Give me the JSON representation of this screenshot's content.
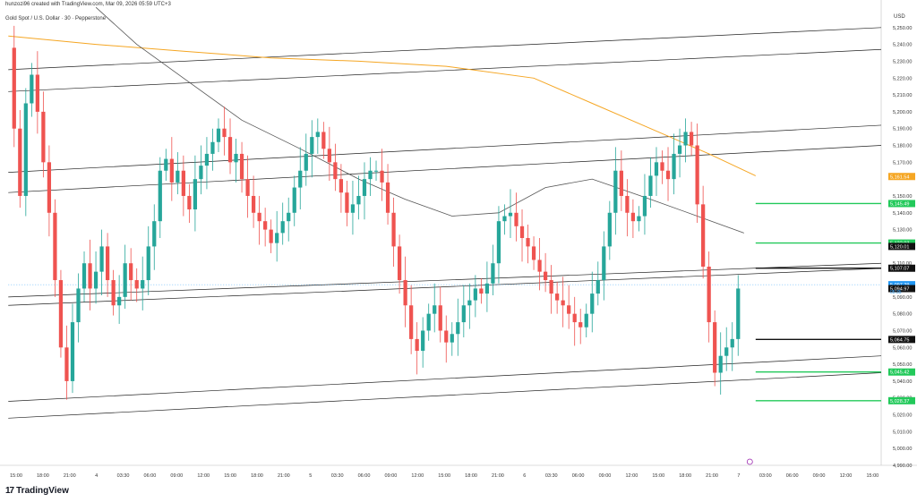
{
  "header": {
    "author_line": "hunzozi96 created with TradingView.com, Mar 09, 2026 05:59 UTC+3",
    "symbol": "Gold Spot / U.S. Dollar · 30 · Pepperstone"
  },
  "brand": {
    "name": "TradingView",
    "logo_icon": "tradingview-logo-icon"
  },
  "colors": {
    "up": "#26a69a",
    "down": "#ef5350",
    "ma_orange": "#f5a623",
    "ma_gray": "#555555",
    "level_green": "#22c95a",
    "level_black": "#111111",
    "current": "#2196f3"
  },
  "chart_data": {
    "type": "candlestick",
    "currency": "USD",
    "ylim": [
      4990,
      5260
    ],
    "y_ticks": [
      "5,250.00",
      "5,240.00",
      "5,230.00",
      "5,220.00",
      "5,210.00",
      "5,200.00",
      "5,190.00",
      "5,180.00",
      "5,170.00",
      "5,150.00",
      "5,140.00",
      "5,130.00",
      "5,110.00",
      "5,090.00",
      "5,080.00",
      "5,070.00",
      "5,060.00",
      "5,050.00",
      "5,040.00",
      "5,030.00",
      "5,020.00",
      "5,010.00",
      "5,000.00",
      "4,990.00"
    ],
    "x_ticks": [
      "15:00",
      "18:00",
      "21:00",
      "4",
      "03:30",
      "06:00",
      "09:00",
      "12:00",
      "15:00",
      "18:00",
      "21:00",
      "5",
      "03:30",
      "06:00",
      "09:00",
      "12:00",
      "15:00",
      "18:00",
      "21:00",
      "6",
      "03:30",
      "06:00",
      "09:00",
      "12:00",
      "15:00",
      "18:00",
      "21:00",
      "7",
      "03:00",
      "06:00",
      "09:00",
      "12:00",
      "15:00"
    ],
    "candle_close_series": [
      5238,
      5190,
      5150,
      5205,
      5222,
      5200,
      5170,
      5140,
      5100,
      5060,
      5040,
      5075,
      5095,
      5110,
      5095,
      5105,
      5120,
      5100,
      5085,
      5090,
      5110,
      5100,
      5095,
      5100,
      5120,
      5135,
      5165,
      5172,
      5158,
      5165,
      5150,
      5142,
      5160,
      5168,
      5175,
      5182,
      5190,
      5185,
      5170,
      5175,
      5160,
      5150,
      5140,
      5135,
      5130,
      5122,
      5128,
      5135,
      5140,
      5155,
      5165,
      5175,
      5185,
      5188,
      5178,
      5170,
      5160,
      5152,
      5140,
      5145,
      5150,
      5160,
      5165,
      5165,
      5158,
      5140,
      5120,
      5100,
      5085,
      5065,
      5058,
      5070,
      5080,
      5085,
      5070,
      5063,
      5068,
      5075,
      5085,
      5088,
      5095,
      5092,
      5098,
      5110,
      5135,
      5138,
      5140,
      5132,
      5125,
      5120,
      5112,
      5105,
      5100,
      5092,
      5088,
      5085,
      5080,
      5075,
      5072,
      5080,
      5092,
      5100,
      5120,
      5140,
      5165,
      5150,
      5140,
      5135,
      5138,
      5150,
      5162,
      5170,
      5165,
      5160,
      5175,
      5180,
      5188,
      5180,
      5145,
      5108,
      5075,
      5045,
      5055,
      5060,
      5065,
      5095
    ],
    "current_price": 5097.29,
    "current_sub": "05:35",
    "price_labels": [
      {
        "text": "5,161.54",
        "price": 5161.54,
        "color": "#f5a623"
      },
      {
        "text": "5,145.49",
        "price": 5145.49,
        "color": "#22c95a"
      },
      {
        "text": "5,122.03",
        "price": 5122.03,
        "color": "#22c95a"
      },
      {
        "text": "5,120.01",
        "price": 5120.01,
        "color": "#111111"
      },
      {
        "text": "5,107.07",
        "price": 5107.07,
        "color": "#111111"
      },
      {
        "text": "5,097.29",
        "price": 5097.29,
        "color": "#2196f3"
      },
      {
        "text": "5,094.97",
        "price": 5094.97,
        "color": "#111111"
      },
      {
        "text": "5,064.75",
        "price": 5064.75,
        "color": "#111111"
      },
      {
        "text": "5,045.42",
        "price": 5045.42,
        "color": "#22c95a"
      },
      {
        "text": "5,028.37",
        "price": 5028.37,
        "color": "#22c95a"
      }
    ],
    "horizontal_levels": [
      5145.49,
      5122.03,
      5107.07,
      5064.75,
      5045.42,
      5028.37
    ],
    "trend_channels": [
      {
        "p1": {
          "bar": 0,
          "price": 5225
        },
        "p2": {
          "bar": 149,
          "price": 5250
        }
      },
      {
        "p1": {
          "bar": 0,
          "price": 5212
        },
        "p2": {
          "bar": 149,
          "price": 5237
        }
      },
      {
        "p1": {
          "bar": 0,
          "price": 5164
        },
        "p2": {
          "bar": 149,
          "price": 5192
        }
      },
      {
        "p1": {
          "bar": 0,
          "price": 5152
        },
        "p2": {
          "bar": 149,
          "price": 5180
        }
      },
      {
        "p1": {
          "bar": 0,
          "price": 5090
        },
        "p2": {
          "bar": 149,
          "price": 5110
        }
      },
      {
        "p1": {
          "bar": 0,
          "price": 5085
        },
        "p2": {
          "bar": 149,
          "price": 5107
        }
      },
      {
        "p1": {
          "bar": 0,
          "price": 5028
        },
        "p2": {
          "bar": 149,
          "price": 5055
        }
      },
      {
        "p1": {
          "bar": 0,
          "price": 5018
        },
        "p2": {
          "bar": 149,
          "price": 5045
        }
      }
    ],
    "ma_orange": [
      [
        0,
        5245
      ],
      [
        15,
        5240
      ],
      [
        30,
        5236
      ],
      [
        45,
        5232
      ],
      [
        60,
        5230
      ],
      [
        75,
        5227
      ],
      [
        90,
        5220
      ],
      [
        100,
        5205
      ],
      [
        110,
        5190
      ],
      [
        120,
        5175
      ],
      [
        128,
        5162
      ]
    ],
    "ma_gray": [
      [
        15,
        5262
      ],
      [
        22,
        5240
      ],
      [
        30,
        5220
      ],
      [
        40,
        5195
      ],
      [
        50,
        5178
      ],
      [
        60,
        5160
      ],
      [
        68,
        5148
      ],
      [
        76,
        5138
      ],
      [
        84,
        5140
      ],
      [
        92,
        5155
      ],
      [
        100,
        5160
      ],
      [
        110,
        5148
      ],
      [
        118,
        5138
      ],
      [
        126,
        5128
      ]
    ],
    "x_total_bars": 150
  }
}
